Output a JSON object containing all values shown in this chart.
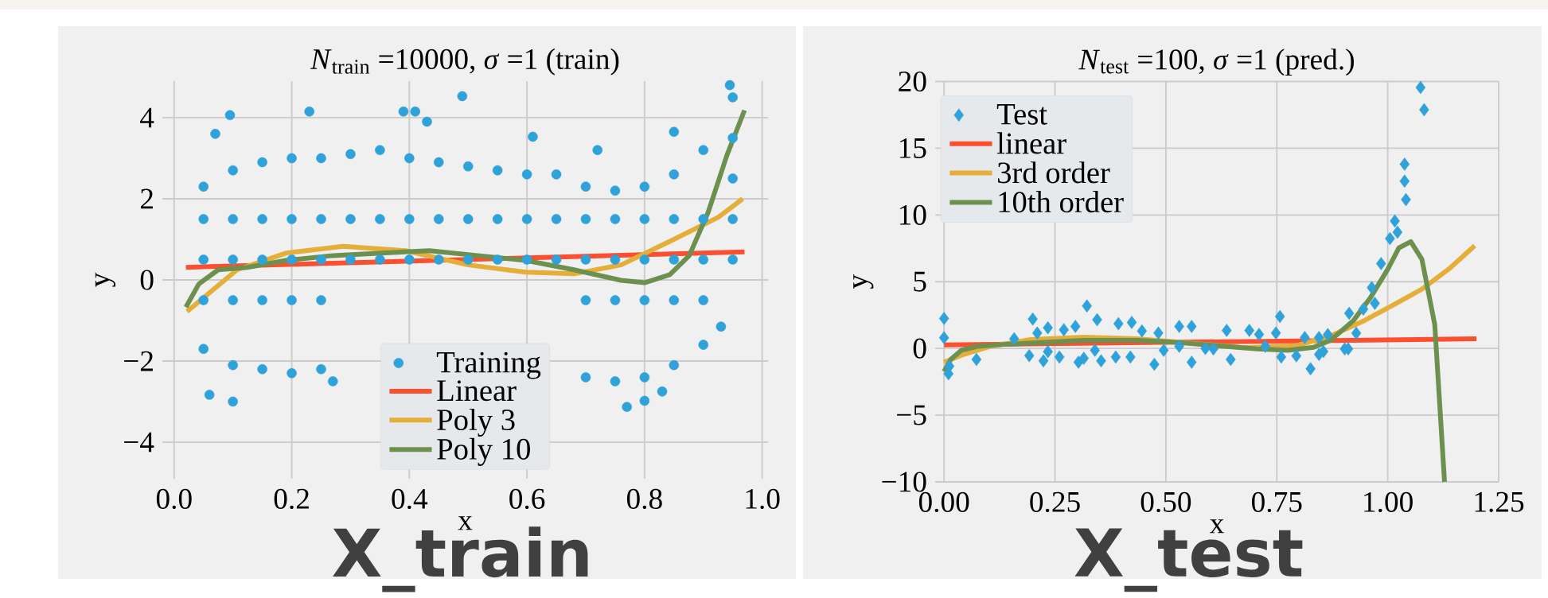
{
  "chart_data": [
    {
      "type": "scatter",
      "title": "*N*$_{train}$ =10000, *σ* =1 (train)",
      "xlabel": "x",
      "ylabel": "y",
      "annotations": [
        "X_train"
      ],
      "xlim": [
        -0.02,
        1.01
      ],
      "ylim": [
        -4.9,
        4.9
      ],
      "xticks": [
        {
          "value": 0,
          "label": "0.0"
        },
        {
          "value": 0.2,
          "label": "0.2"
        },
        {
          "value": 0.4,
          "label": "0.4"
        },
        {
          "value": 0.6,
          "label": "0.6"
        },
        {
          "value": 0.8,
          "label": "0.8"
        },
        {
          "value": 1,
          "label": "1.0"
        }
      ],
      "yticks": [
        {
          "value": -4,
          "label": "−4"
        },
        {
          "value": -2,
          "label": "−2"
        },
        0,
        2,
        4
      ],
      "grid": true,
      "legend": "bottom",
      "series": [
        {
          "name": "Training",
          "marker": "circle",
          "color": "#30a2da",
          "x": [
            0.05,
            0.05,
            0.05,
            0.05,
            0.05,
            0.1,
            0.1,
            0.1,
            0.1,
            0.1,
            0.15,
            0.15,
            0.15,
            0.15,
            0.15,
            0.2,
            0.2,
            0.2,
            0.2,
            0.2,
            0.25,
            0.25,
            0.25,
            0.25,
            0.25,
            0.3,
            0.3,
            0.3,
            0.35,
            0.35,
            0.35,
            0.4,
            0.4,
            0.4,
            0.45,
            0.45,
            0.45,
            0.5,
            0.5,
            0.5,
            0.55,
            0.55,
            0.55,
            0.6,
            0.6,
            0.6,
            0.65,
            0.65,
            0.65,
            0.7,
            0.7,
            0.7,
            0.7,
            0.7,
            0.75,
            0.75,
            0.75,
            0.75,
            0.75,
            0.8,
            0.8,
            0.8,
            0.8,
            0.8,
            0.85,
            0.85,
            0.85,
            0.85,
            0.85,
            0.9,
            0.9,
            0.9,
            0.9,
            0.9,
            0.95,
            0.95,
            0.95,
            0.95,
            0.95,
            0.095,
            0.23,
            0.49,
            0.07,
            0.39,
            0.41,
            0.61,
            0.72,
            0.85,
            0.945,
            0.06,
            0.1,
            0.27,
            0.77,
            0.8,
            0.83,
            0.93,
            0.43
          ],
          "values": [
            2.3,
            1.5,
            0.5,
            -0.5,
            -1.7,
            2.7,
            1.5,
            0.5,
            -0.5,
            -2.1,
            2.9,
            1.5,
            0.5,
            -0.5,
            -2.2,
            3.0,
            1.5,
            0.5,
            -0.5,
            -2.3,
            3.0,
            1.5,
            0.5,
            -0.5,
            -2.2,
            3.1,
            1.5,
            0.5,
            3.2,
            1.5,
            0.5,
            3.0,
            1.5,
            0.5,
            2.9,
            1.5,
            0.5,
            2.8,
            1.5,
            0.5,
            2.7,
            1.5,
            0.5,
            2.6,
            1.5,
            0.5,
            2.6,
            1.5,
            0.5,
            2.3,
            1.5,
            0.5,
            -0.5,
            -2.4,
            2.2,
            1.5,
            0.5,
            -0.5,
            -2.5,
            2.3,
            1.5,
            0.5,
            -0.5,
            -2.4,
            2.6,
            1.5,
            0.5,
            -0.5,
            -2.1,
            3.2,
            1.5,
            0.5,
            -0.5,
            -1.6,
            4.5,
            3.5,
            2.5,
            1.5,
            0.5,
            4.06,
            4.15,
            4.53,
            3.6,
            4.15,
            4.15,
            3.53,
            3.2,
            3.65,
            4.8,
            -2.83,
            -3.0,
            -2.5,
            -3.13,
            -2.98,
            -2.75,
            -1.15,
            3.9
          ]
        },
        {
          "name": "Linear",
          "type": "line",
          "color": "#fc4f30",
          "x": [
            0.02,
            0.97
          ],
          "values": [
            0.31,
            0.69
          ]
        },
        {
          "name": "Poly 3",
          "type": "line",
          "color": "#e5ae38",
          "x": [
            0.022,
            0.107,
            0.19,
            0.287,
            0.394,
            0.5,
            0.598,
            0.68,
            0.76,
            0.843,
            0.925,
            0.967
          ],
          "values": [
            -0.78,
            0.25,
            0.66,
            0.83,
            0.72,
            0.37,
            0.19,
            0.15,
            0.37,
            0.95,
            1.54,
            2.0
          ]
        },
        {
          "name": "Poly 10",
          "type": "line",
          "color": "#6d904f",
          "x": [
            0.02,
            0.042,
            0.075,
            0.124,
            0.19,
            0.27,
            0.353,
            0.434,
            0.516,
            0.598,
            0.68,
            0.76,
            0.8,
            0.843,
            0.876,
            0.908,
            0.94,
            0.97
          ],
          "values": [
            -0.67,
            -0.1,
            0.25,
            0.31,
            0.48,
            0.6,
            0.66,
            0.72,
            0.6,
            0.48,
            0.25,
            -0.01,
            -0.07,
            0.13,
            0.6,
            1.66,
            3.07,
            4.18
          ]
        }
      ]
    },
    {
      "type": "scatter",
      "title": "*N*$_{test}$ =100, *σ* =1 (pred.)",
      "xlabel": "x",
      "ylabel": "y",
      "annotations": [
        "X_test"
      ],
      "xlim": [
        -0.02,
        1.25
      ],
      "ylim": [
        -10,
        20
      ],
      "xticks": [
        {
          "value": 0,
          "label": "0.00"
        },
        {
          "value": 0.25,
          "label": "0.25"
        },
        {
          "value": 0.5,
          "label": "0.50"
        },
        {
          "value": 0.75,
          "label": "0.75"
        },
        {
          "value": 1,
          "label": "1.00"
        },
        {
          "value": 1.25,
          "label": "1.25"
        }
      ],
      "yticks": [
        {
          "value": -10,
          "label": "−10"
        },
        {
          "value": -5,
          "label": "−5"
        },
        0,
        5,
        10,
        15,
        20
      ],
      "grid": true,
      "legend": "top left",
      "series": [
        {
          "name": "Test",
          "marker": "diamond",
          "color": "#30a2da",
          "x": [
            0,
            0,
            0.01,
            0.012,
            0.073,
            0.158,
            0.192,
            0.2,
            0.21,
            0.224,
            0.234,
            0.234,
            0.26,
            0.27,
            0.296,
            0.303,
            0.315,
            0.322,
            0.34,
            0.345,
            0.354,
            0.387,
            0.393,
            0.42,
            0.423,
            0.446,
            0.474,
            0.483,
            0.495,
            0.53,
            0.53,
            0.558,
            0.558,
            0.589,
            0.607,
            0.637,
            0.646,
            0.688,
            0.71,
            0.724,
            0.748,
            0.757,
            0.76,
            0.794,
            0.813,
            0.826,
            0.845,
            0.845,
            0.855,
            0.865,
            0.903,
            0.911,
            0.913,
            0.929,
            0.945,
            0.964,
            0.971,
            0.985,
            1.005,
            1.016,
            1.022,
            1.038,
            1.038,
            1.041,
            1.074,
            1.082
          ],
          "values": [
            2.25,
            0.8,
            -1.9,
            -1.33,
            -0.83,
            0.72,
            -0.54,
            2.2,
            1.15,
            -0.93,
            1.55,
            -0.24,
            -0.64,
            1.4,
            1.65,
            -1.03,
            -0.74,
            3.18,
            -0.14,
            2.15,
            -0.93,
            -0.64,
            1.85,
            -0.64,
            1.95,
            1.31,
            -1.19,
            1.15,
            -0.14,
            1.65,
            0.16,
            1.65,
            -1.03,
            0,
            -0.04,
            1.35,
            -0.83,
            1.35,
            1.05,
            0.16,
            1.15,
            2.39,
            -0.64,
            -0.56,
            0.82,
            -1.52,
            0.82,
            -0.45,
            -0.23,
            1.04,
            -0.03,
            -0.03,
            2.63,
            1.14,
            2.95,
            4.55,
            3.38,
            6.36,
            8.23,
            9.55,
            8.71,
            13.81,
            12.53,
            11.15,
            19.55,
            17.89
          ]
        },
        {
          "name": "linear",
          "type": "line",
          "color": "#fc4f30",
          "x": [
            0,
            1.2
          ],
          "values": [
            0.26,
            0.72
          ]
        },
        {
          "name": "3rd order",
          "type": "line",
          "color": "#e5ae38",
          "x": [
            0,
            0.045,
            0.105,
            0.195,
            0.315,
            0.435,
            0.556,
            0.676,
            0.793,
            0.871,
            0.948,
            1.013,
            1.077,
            1.141,
            1.196
          ],
          "values": [
            -1.03,
            -0.44,
            0.16,
            0.66,
            0.85,
            0.72,
            0.4,
            0.06,
            0.2,
            0.93,
            2.1,
            3.27,
            4.44,
            6.04,
            7.7
          ]
        },
        {
          "name": "10th order",
          "type": "line",
          "color": "#6d904f",
          "x": [
            0,
            0.015,
            0.039,
            0.075,
            0.135,
            0.225,
            0.315,
            0.435,
            0.526,
            0.616,
            0.706,
            0.775,
            0.833,
            0.871,
            0.923,
            0.961,
            1.0,
            1.025,
            1.052,
            1.077,
            1.106,
            1.128
          ],
          "values": [
            -1.73,
            -0.83,
            -0.14,
            0.16,
            0.3,
            0.46,
            0.6,
            0.6,
            0.46,
            0.2,
            -0.04,
            -0.14,
            0.08,
            0.6,
            2.1,
            3.8,
            5.93,
            7.53,
            8.0,
            6.68,
            1.78,
            -10
          ]
        }
      ]
    }
  ]
}
